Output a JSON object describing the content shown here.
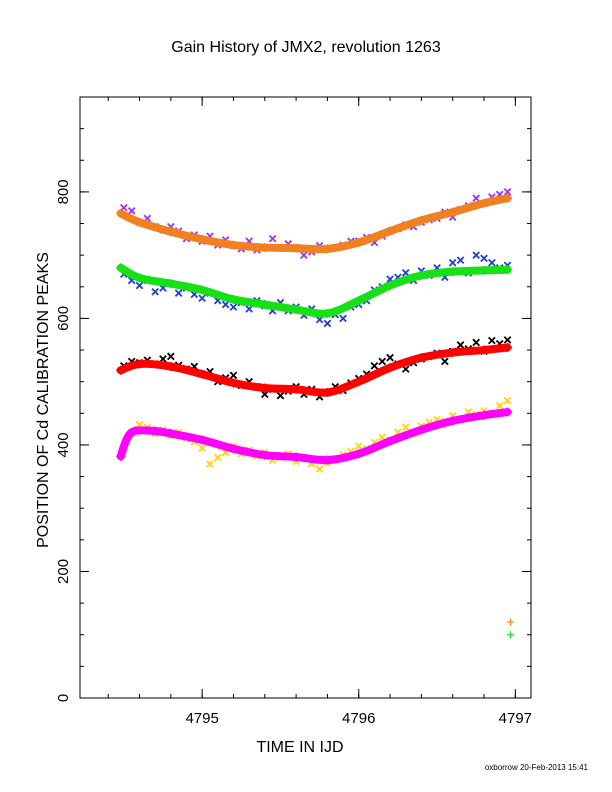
{
  "chart_data": {
    "type": "scatter",
    "title": "Gain History of JMX2, revolution 1263",
    "xlabel": "TIME IN IJD",
    "ylabel": "POSITION OF Cd CALIBRATION PEAKS",
    "xlim": [
      4794.22,
      4797.1
    ],
    "ylim": [
      0,
      950
    ],
    "xticks": [
      4795,
      4796,
      4797
    ],
    "yticks": [
      0,
      200,
      400,
      600,
      800
    ],
    "grid": false,
    "footer": "oxborrow 20-Feb-2013 15:41",
    "series": [
      {
        "kind": "scatter",
        "marker": "x",
        "color": "#9b30ff",
        "points": [
          [
            4794.5,
            775
          ],
          [
            4794.55,
            770
          ],
          [
            4794.6,
            752
          ],
          [
            4794.65,
            758
          ],
          [
            4794.7,
            745
          ],
          [
            4794.75,
            740
          ],
          [
            4794.8,
            745
          ],
          [
            4794.85,
            738
          ],
          [
            4794.9,
            726
          ],
          [
            4794.95,
            732
          ],
          [
            4795.0,
            722
          ],
          [
            4795.05,
            730
          ],
          [
            4795.1,
            716
          ],
          [
            4795.15,
            724
          ],
          [
            4795.2,
            715
          ],
          [
            4795.25,
            710
          ],
          [
            4795.3,
            722
          ],
          [
            4795.35,
            708
          ],
          [
            4795.4,
            712
          ],
          [
            4795.45,
            726
          ],
          [
            4795.5,
            712
          ],
          [
            4795.55,
            718
          ],
          [
            4795.6,
            712
          ],
          [
            4795.65,
            700
          ],
          [
            4795.7,
            705
          ],
          [
            4795.75,
            715
          ],
          [
            4795.8,
            710
          ],
          [
            4795.85,
            712
          ],
          [
            4795.9,
            716
          ],
          [
            4795.95,
            722
          ],
          [
            4796.0,
            722
          ],
          [
            4796.05,
            728
          ],
          [
            4796.1,
            720
          ],
          [
            4796.15,
            730
          ],
          [
            4796.2,
            738
          ],
          [
            4796.25,
            742
          ],
          [
            4796.3,
            748
          ],
          [
            4796.35,
            745
          ],
          [
            4796.4,
            752
          ],
          [
            4796.45,
            756
          ],
          [
            4796.5,
            758
          ],
          [
            4796.55,
            768
          ],
          [
            4796.6,
            760
          ],
          [
            4796.65,
            772
          ],
          [
            4796.7,
            778
          ],
          [
            4796.75,
            790
          ],
          [
            4796.8,
            782
          ],
          [
            4796.85,
            792
          ],
          [
            4796.9,
            796
          ],
          [
            4796.95,
            800
          ]
        ]
      },
      {
        "kind": "scatter",
        "marker": "x",
        "color": "#1f3fd6",
        "points": [
          [
            4794.5,
            670
          ],
          [
            4794.55,
            660
          ],
          [
            4794.6,
            652
          ],
          [
            4794.65,
            660
          ],
          [
            4794.7,
            642
          ],
          [
            4794.75,
            648
          ],
          [
            4794.8,
            655
          ],
          [
            4794.85,
            640
          ],
          [
            4794.9,
            648
          ],
          [
            4794.95,
            638
          ],
          [
            4795.0,
            632
          ],
          [
            4795.05,
            640
          ],
          [
            4795.1,
            628
          ],
          [
            4795.15,
            622
          ],
          [
            4795.2,
            618
          ],
          [
            4795.25,
            625
          ],
          [
            4795.3,
            615
          ],
          [
            4795.35,
            628
          ],
          [
            4795.4,
            620
          ],
          [
            4795.45,
            612
          ],
          [
            4795.5,
            625
          ],
          [
            4795.55,
            612
          ],
          [
            4795.6,
            618
          ],
          [
            4795.65,
            605
          ],
          [
            4795.7,
            615
          ],
          [
            4795.75,
            598
          ],
          [
            4795.8,
            592
          ],
          [
            4795.85,
            606
          ],
          [
            4795.9,
            600
          ],
          [
            4795.95,
            618
          ],
          [
            4796.0,
            622
          ],
          [
            4796.05,
            628
          ],
          [
            4796.1,
            645
          ],
          [
            4796.15,
            650
          ],
          [
            4796.2,
            662
          ],
          [
            4796.25,
            665
          ],
          [
            4796.3,
            672
          ],
          [
            4796.35,
            660
          ],
          [
            4796.4,
            675
          ],
          [
            4796.45,
            668
          ],
          [
            4796.5,
            680
          ],
          [
            4796.55,
            665
          ],
          [
            4796.6,
            688
          ],
          [
            4796.65,
            692
          ],
          [
            4796.7,
            672
          ],
          [
            4796.75,
            700
          ],
          [
            4796.8,
            695
          ],
          [
            4796.85,
            688
          ],
          [
            4796.9,
            680
          ],
          [
            4796.95,
            684
          ]
        ]
      },
      {
        "kind": "scatter",
        "marker": "x",
        "color": "#000000",
        "points": [
          [
            4794.5,
            525
          ],
          [
            4794.55,
            532
          ],
          [
            4794.6,
            530
          ],
          [
            4794.65,
            534
          ],
          [
            4794.7,
            528
          ],
          [
            4794.75,
            536
          ],
          [
            4794.8,
            540
          ],
          [
            4794.85,
            526
          ],
          [
            4794.9,
            520
          ],
          [
            4794.95,
            524
          ],
          [
            4795.0,
            512
          ],
          [
            4795.05,
            516
          ],
          [
            4795.1,
            500
          ],
          [
            4795.15,
            506
          ],
          [
            4795.2,
            510
          ],
          [
            4795.25,
            494
          ],
          [
            4795.3,
            500
          ],
          [
            4795.35,
            492
          ],
          [
            4795.4,
            480
          ],
          [
            4795.45,
            488
          ],
          [
            4795.5,
            478
          ],
          [
            4795.55,
            485
          ],
          [
            4795.6,
            492
          ],
          [
            4795.65,
            480
          ],
          [
            4795.7,
            488
          ],
          [
            4795.75,
            476
          ],
          [
            4795.8,
            482
          ],
          [
            4795.85,
            492
          ],
          [
            4795.9,
            486
          ],
          [
            4795.95,
            498
          ],
          [
            4796.0,
            505
          ],
          [
            4796.05,
            512
          ],
          [
            4796.1,
            525
          ],
          [
            4796.15,
            532
          ],
          [
            4796.2,
            538
          ],
          [
            4796.25,
            528
          ],
          [
            4796.3,
            520
          ],
          [
            4796.35,
            530
          ],
          [
            4796.4,
            536
          ],
          [
            4796.45,
            540
          ],
          [
            4796.5,
            545
          ],
          [
            4796.55,
            532
          ],
          [
            4796.6,
            548
          ],
          [
            4796.65,
            558
          ],
          [
            4796.7,
            552
          ],
          [
            4796.75,
            562
          ],
          [
            4796.8,
            548
          ],
          [
            4796.85,
            565
          ],
          [
            4796.9,
            560
          ],
          [
            4796.95,
            566
          ]
        ]
      },
      {
        "kind": "scatter",
        "marker": "x",
        "color": "#ffd400",
        "points": [
          [
            4794.55,
            420
          ],
          [
            4794.6,
            432
          ],
          [
            4794.65,
            428
          ],
          [
            4794.7,
            418
          ],
          [
            4794.75,
            424
          ],
          [
            4794.8,
            415
          ],
          [
            4794.85,
            420
          ],
          [
            4794.9,
            410
          ],
          [
            4794.95,
            405
          ],
          [
            4795.0,
            395
          ],
          [
            4795.05,
            370
          ],
          [
            4795.1,
            380
          ],
          [
            4795.15,
            388
          ],
          [
            4795.2,
            398
          ],
          [
            4795.25,
            386
          ],
          [
            4795.3,
            392
          ],
          [
            4795.35,
            382
          ],
          [
            4795.4,
            388
          ],
          [
            4795.45,
            376
          ],
          [
            4795.5,
            380
          ],
          [
            4795.55,
            386
          ],
          [
            4795.6,
            374
          ],
          [
            4795.65,
            380
          ],
          [
            4795.7,
            370
          ],
          [
            4795.75,
            362
          ],
          [
            4795.8,
            372
          ],
          [
            4795.85,
            378
          ],
          [
            4795.9,
            385
          ],
          [
            4795.95,
            390
          ],
          [
            4796.0,
            398
          ],
          [
            4796.05,
            394
          ],
          [
            4796.1,
            404
          ],
          [
            4796.15,
            412
          ],
          [
            4796.2,
            408
          ],
          [
            4796.25,
            420
          ],
          [
            4796.3,
            428
          ],
          [
            4796.35,
            418
          ],
          [
            4796.4,
            430
          ],
          [
            4796.45,
            436
          ],
          [
            4796.5,
            440
          ],
          [
            4796.55,
            438
          ],
          [
            4796.6,
            446
          ],
          [
            4796.65,
            440
          ],
          [
            4796.7,
            452
          ],
          [
            4796.75,
            448
          ],
          [
            4796.8,
            454
          ],
          [
            4796.85,
            450
          ],
          [
            4796.9,
            462
          ],
          [
            4796.95,
            470
          ]
        ]
      },
      {
        "kind": "curve",
        "marker": "+",
        "color": "#f08020",
        "points": [
          [
            4794.48,
            766
          ],
          [
            4794.6,
            752
          ],
          [
            4794.8,
            737
          ],
          [
            4795.0,
            725
          ],
          [
            4795.2,
            716
          ],
          [
            4795.4,
            712
          ],
          [
            4795.6,
            711
          ],
          [
            4795.8,
            710
          ],
          [
            4796.0,
            720
          ],
          [
            4796.2,
            738
          ],
          [
            4796.4,
            755
          ],
          [
            4796.6,
            768
          ],
          [
            4796.8,
            782
          ],
          [
            4796.95,
            790
          ]
        ]
      },
      {
        "kind": "curve",
        "marker": "+",
        "color": "#16e016",
        "points": [
          [
            4794.48,
            680
          ],
          [
            4794.6,
            664
          ],
          [
            4794.8,
            655
          ],
          [
            4795.0,
            645
          ],
          [
            4795.2,
            630
          ],
          [
            4795.4,
            622
          ],
          [
            4795.6,
            614
          ],
          [
            4795.8,
            608
          ],
          [
            4796.0,
            628
          ],
          [
            4796.2,
            652
          ],
          [
            4796.4,
            668
          ],
          [
            4796.6,
            674
          ],
          [
            4796.8,
            676
          ],
          [
            4796.95,
            677
          ]
        ]
      },
      {
        "kind": "curve",
        "marker": "+",
        "color": "#ff0000",
        "points": [
          [
            4794.48,
            518
          ],
          [
            4794.6,
            528
          ],
          [
            4794.8,
            524
          ],
          [
            4795.0,
            512
          ],
          [
            4795.2,
            498
          ],
          [
            4795.4,
            490
          ],
          [
            4795.6,
            488
          ],
          [
            4795.8,
            483
          ],
          [
            4796.0,
            500
          ],
          [
            4796.2,
            522
          ],
          [
            4796.4,
            538
          ],
          [
            4796.6,
            546
          ],
          [
            4796.8,
            550
          ],
          [
            4796.95,
            554
          ]
        ]
      },
      {
        "kind": "curve",
        "marker": "+",
        "color": "#ff00ff",
        "points": [
          [
            4794.48,
            382
          ],
          [
            4794.52,
            410
          ],
          [
            4794.57,
            422
          ],
          [
            4794.7,
            422
          ],
          [
            4794.8,
            418
          ],
          [
            4795.0,
            408
          ],
          [
            4795.2,
            394
          ],
          [
            4795.4,
            384
          ],
          [
            4795.6,
            381
          ],
          [
            4795.8,
            376
          ],
          [
            4796.0,
            386
          ],
          [
            4796.2,
            406
          ],
          [
            4796.4,
            424
          ],
          [
            4796.6,
            438
          ],
          [
            4796.8,
            447
          ],
          [
            4796.95,
            452
          ]
        ]
      },
      {
        "kind": "marker",
        "marker": "+",
        "color": "#f08020",
        "points": [
          [
            4796.97,
            120
          ]
        ]
      },
      {
        "kind": "marker",
        "marker": "+",
        "color": "#16e016",
        "points": [
          [
            4796.97,
            100
          ]
        ]
      }
    ]
  }
}
